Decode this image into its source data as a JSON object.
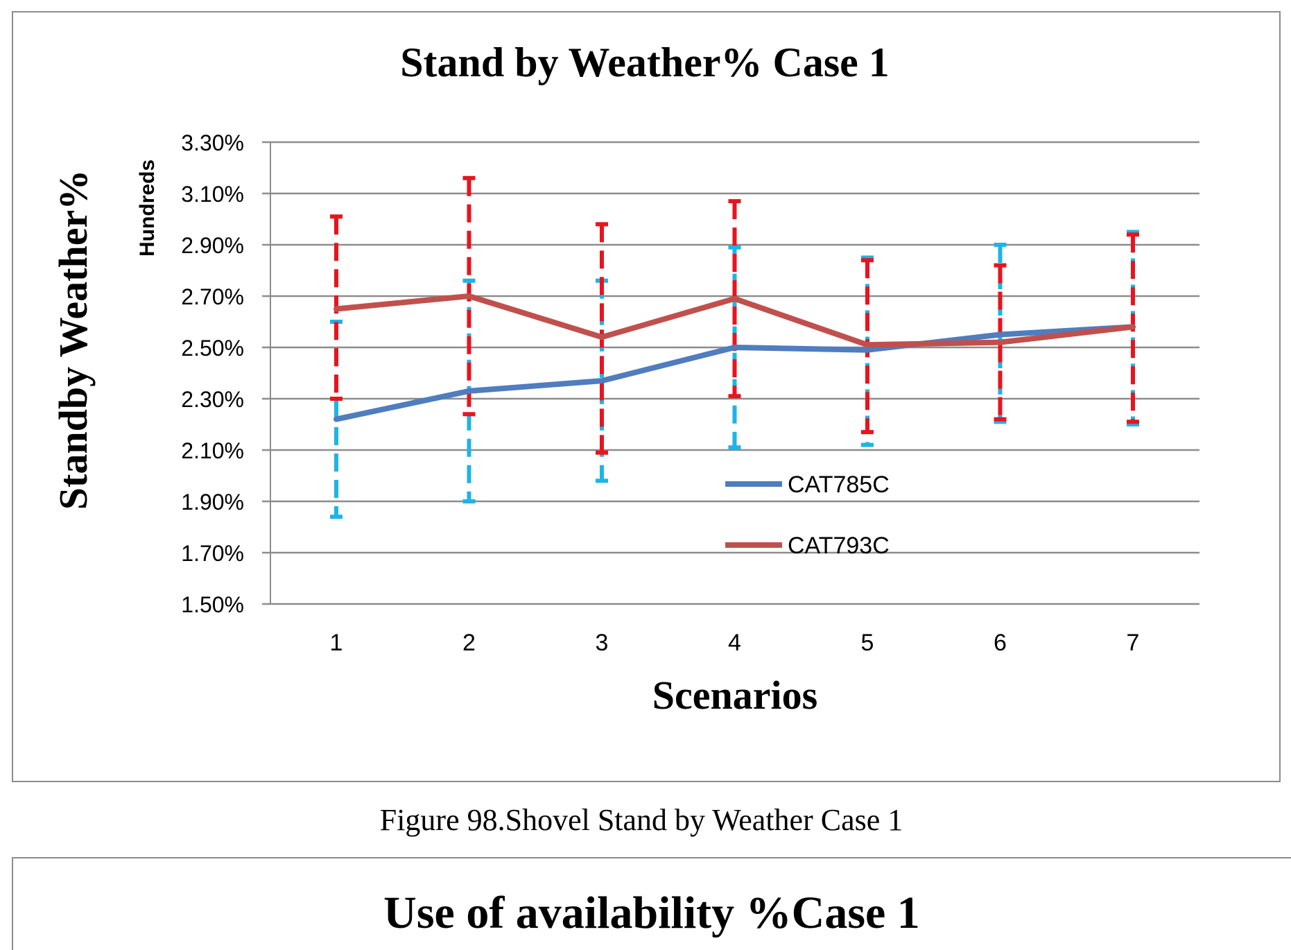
{
  "chart_data": {
    "type": "line",
    "title": "Stand by Weather% Case 1",
    "xlabel": "Scenarios",
    "ylabel": "Standby Weather%",
    "ylabel_unit": "Hundreds",
    "categories": [
      "1",
      "2",
      "3",
      "4",
      "5",
      "6",
      "7"
    ],
    "ylim": [
      1.5,
      3.3
    ],
    "ytick_values": [
      1.5,
      1.7,
      1.9,
      2.1,
      2.3,
      2.5,
      2.7,
      2.9,
      3.1,
      3.3
    ],
    "ytick_labels": [
      "1.50%",
      "1.70%",
      "1.90%",
      "2.10%",
      "2.30%",
      "2.50%",
      "2.70%",
      "2.90%",
      "3.10%",
      "3.30%"
    ],
    "grid": true,
    "legend_position": "center-right",
    "series": [
      {
        "name": "CAT785C",
        "color": "#4F7DBE",
        "error_color": "#1EB4E6",
        "values": [
          2.22,
          2.33,
          2.37,
          2.5,
          2.49,
          2.55,
          2.58
        ],
        "error_low": [
          1.84,
          1.9,
          1.98,
          2.11,
          2.12,
          2.21,
          2.2
        ],
        "error_high": [
          2.6,
          2.76,
          2.76,
          2.89,
          2.85,
          2.9,
          2.95
        ]
      },
      {
        "name": "CAT793C",
        "color": "#C0504D",
        "error_color": "#E8141E",
        "values": [
          2.65,
          2.7,
          2.54,
          2.69,
          2.51,
          2.52,
          2.58
        ],
        "error_low": [
          2.3,
          2.24,
          2.09,
          2.31,
          2.17,
          2.22,
          2.21
        ],
        "error_high": [
          3.01,
          3.16,
          2.98,
          3.07,
          2.84,
          2.82,
          2.94
        ]
      }
    ]
  },
  "caption": "Figure 98.Shovel Stand by Weather Case 1",
  "next_chart_title": "Use of availability %Case 1"
}
